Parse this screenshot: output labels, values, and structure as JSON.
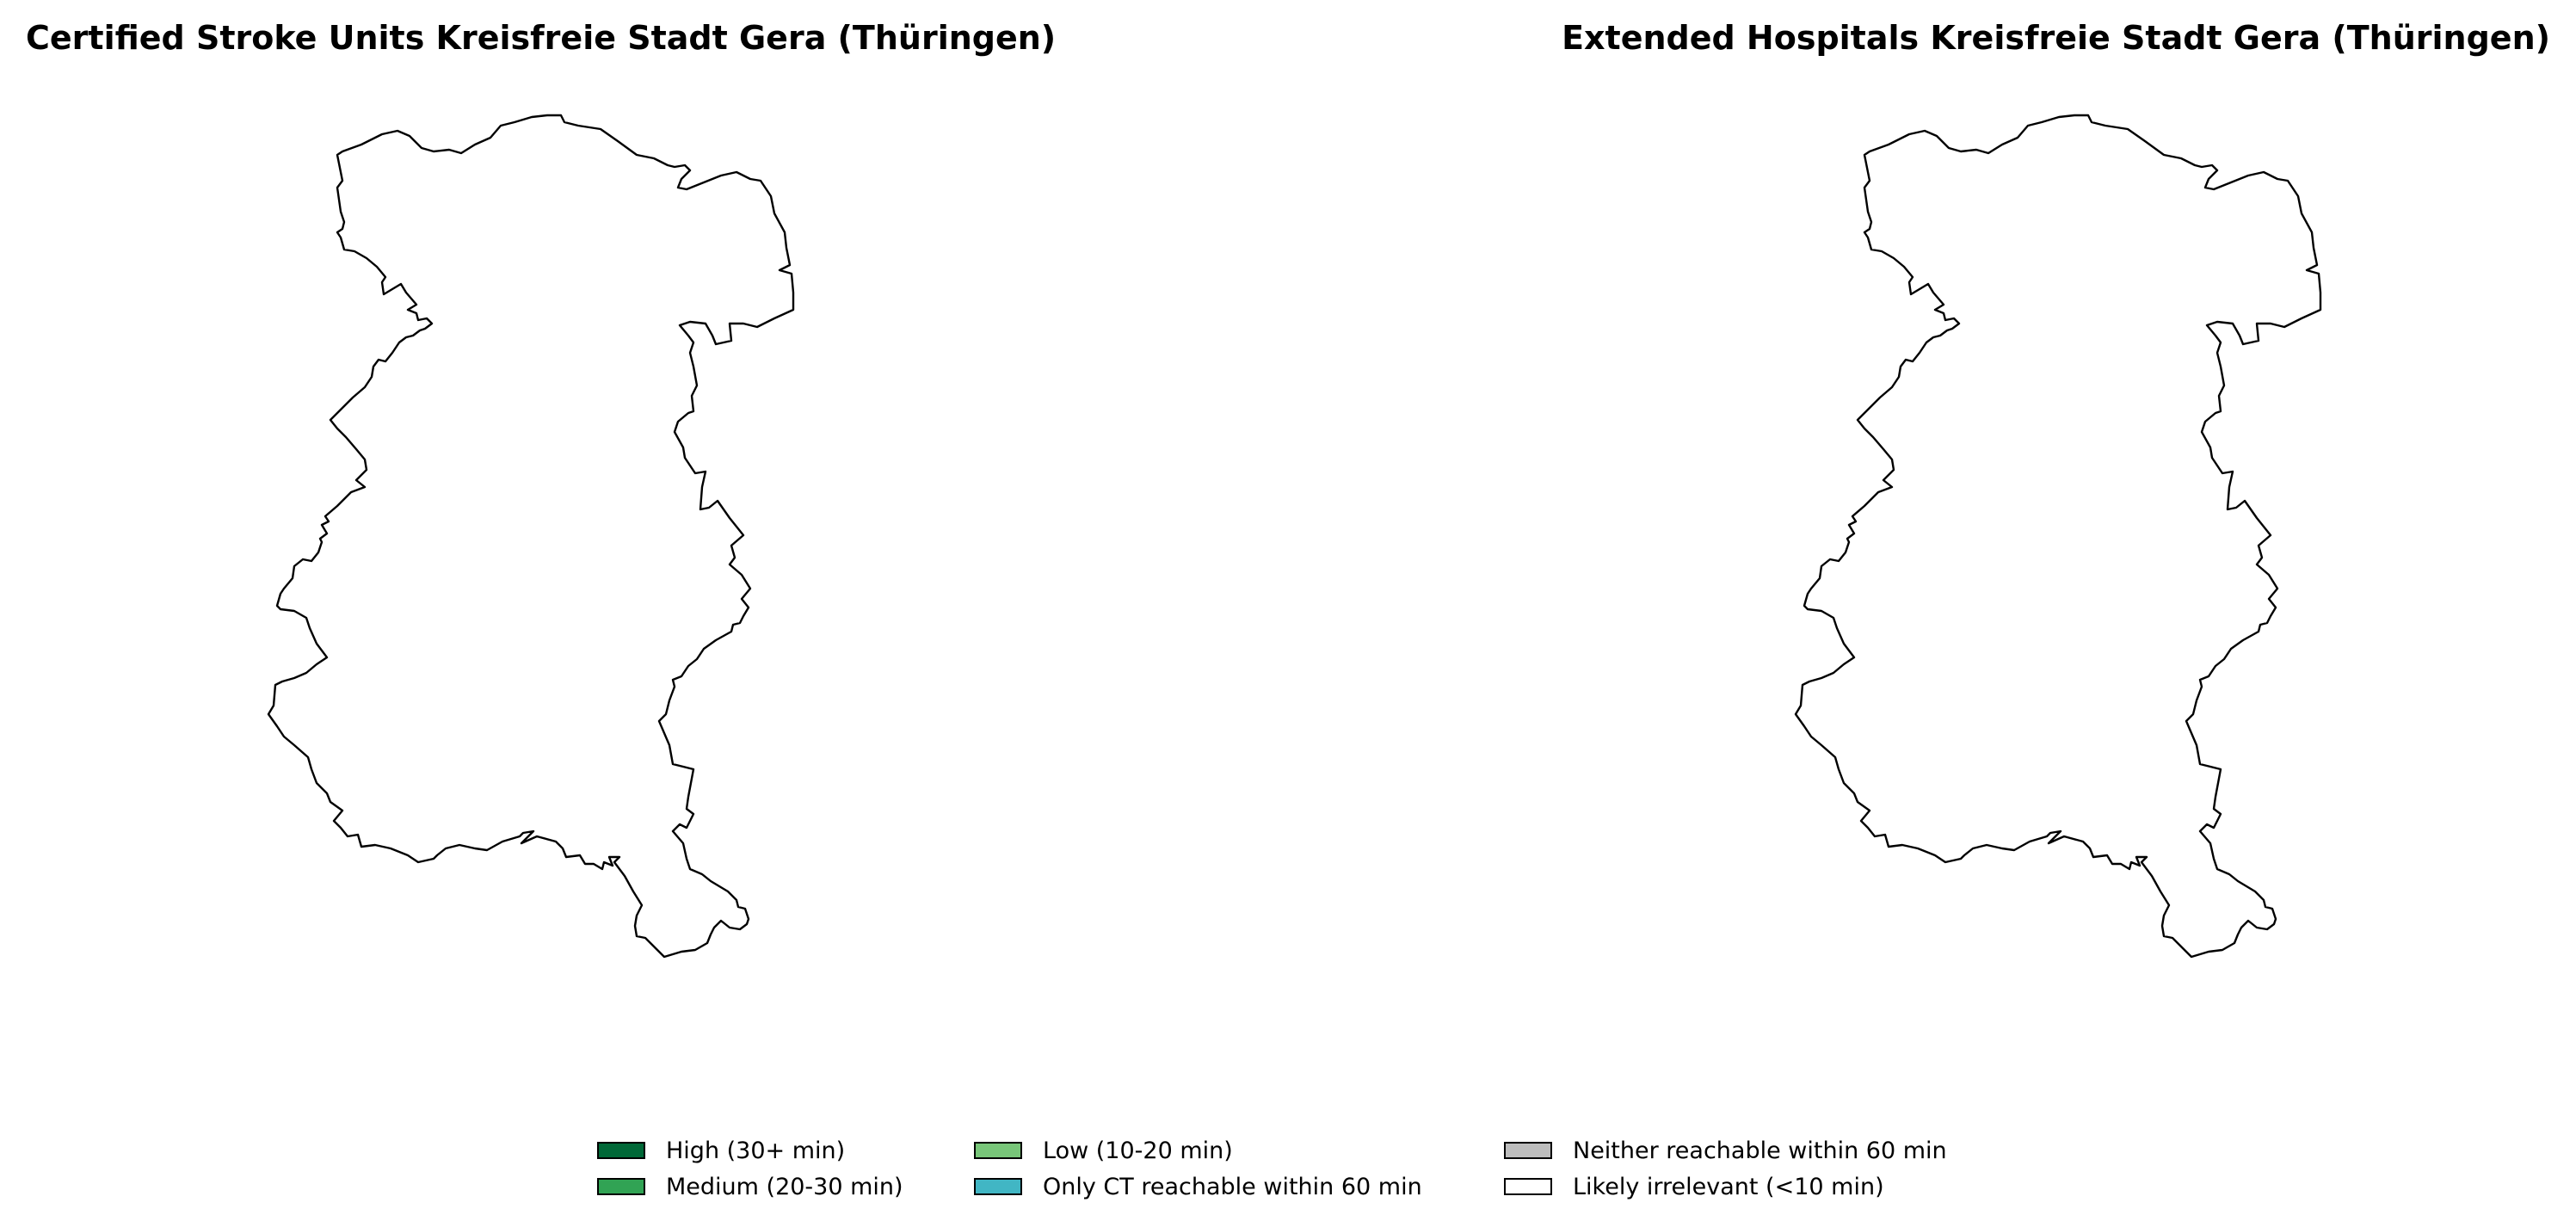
{
  "titles": {
    "left": "Certified Stroke Units Kreisfreie Stadt Gera (Thüringen)",
    "right": "Extended Hospitals Kreisfreie Stadt Gera (Thüringen)"
  },
  "maps": {
    "region": "Kreisfreie Stadt Gera",
    "left_fill": "#ffffff",
    "right_fill": "#ffffff",
    "outline_color": "#000000"
  },
  "legend": {
    "items": [
      {
        "label": "High (30+ min)",
        "color": "#006837"
      },
      {
        "label": "Medium (20-30 min)",
        "color": "#31a354"
      },
      {
        "label": "Low (10-20 min)",
        "color": "#78c679"
      },
      {
        "label": "Only CT reachable within 60 min",
        "color": "#41b6c4"
      },
      {
        "label": "Neither reachable within 60 min",
        "color": "#bdbdbd"
      },
      {
        "label": "Likely irrelevant (<10 min)",
        "color": "#ffffff"
      }
    ]
  }
}
